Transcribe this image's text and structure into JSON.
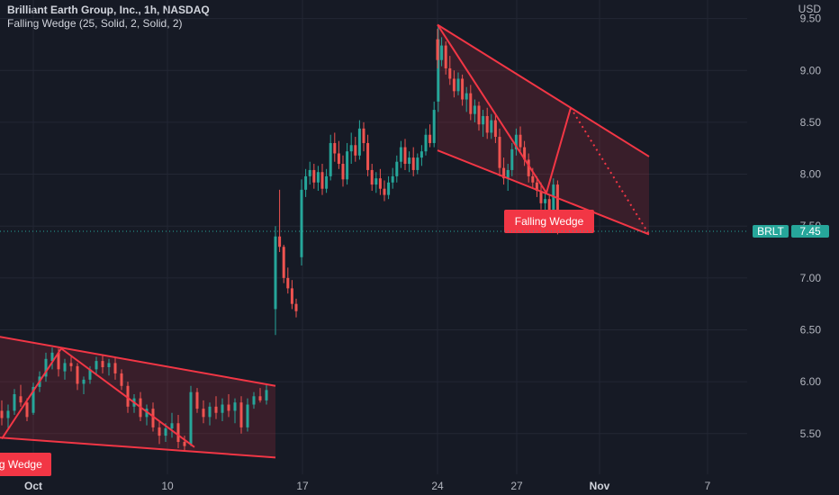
{
  "header": {
    "title": "Brilliant Earth Group, Inc., 1h, NASDAQ",
    "indicator": "Falling Wedge (25, Solid, 2, Solid, 2)"
  },
  "chart_data": {
    "type": "candlestick",
    "currency": "USD",
    "ticker": "BRLT",
    "last_price": "7.45",
    "ylim": [
      5.15,
      9.6
    ],
    "y_ticks": [
      "9.50",
      "9.00",
      "8.50",
      "8.00",
      "7.50",
      "7.00",
      "6.50",
      "6.00",
      "5.50"
    ],
    "x_ticks": [
      "Oct",
      "10",
      "17",
      "24",
      "27",
      "Nov",
      "7"
    ],
    "colors": {
      "up": "#26a69a",
      "down": "#ef5350",
      "wedge": "#f23645",
      "background": "#161a25",
      "grid": "#232734"
    },
    "patterns": [
      {
        "label": "Falling Wedge",
        "upper": [
          [
            "Oct 1",
            6.43
          ],
          [
            "Oct 16",
            5.96
          ]
        ],
        "lower": [
          [
            "Oct 1",
            5.46
          ],
          [
            "Oct 16",
            5.27
          ]
        ],
        "zigzag": [
          [
            "Oct 1",
            5.45
          ],
          [
            "Oct 3",
            6.32
          ],
          [
            "Oct 12",
            5.37
          ]
        ]
      },
      {
        "label": "Falling Wedge",
        "upper": [
          [
            "Oct 24",
            9.44
          ],
          [
            "Nov 3",
            8.17
          ]
        ],
        "lower": [
          [
            "Oct 24",
            8.23
          ],
          [
            "Nov 3",
            7.42
          ]
        ],
        "zigzag": [
          [
            "Oct 24",
            9.44
          ],
          [
            "Oct 28",
            7.82
          ],
          [
            "Oct 30",
            8.64
          ],
          [
            "Nov 3",
            7.42
          ]
        ]
      }
    ],
    "candles": [
      [
        5.72,
        5.82,
        5.58,
        5.65
      ],
      [
        5.65,
        5.78,
        5.55,
        5.72
      ],
      [
        5.72,
        5.93,
        5.68,
        5.88
      ],
      [
        5.86,
        5.97,
        5.76,
        5.8
      ],
      [
        5.8,
        5.84,
        5.62,
        5.66
      ],
      [
        5.7,
        5.99,
        5.68,
        5.95
      ],
      [
        5.95,
        6.1,
        5.9,
        6.05
      ],
      [
        6.05,
        6.28,
        6.0,
        6.22
      ],
      [
        6.2,
        6.33,
        6.12,
        6.28
      ],
      [
        6.28,
        6.32,
        6.05,
        6.12
      ],
      [
        6.1,
        6.22,
        6.02,
        6.18
      ],
      [
        6.18,
        6.24,
        6.1,
        6.15
      ],
      [
        6.15,
        6.18,
        5.92,
        5.98
      ],
      [
        5.98,
        6.05,
        5.88,
        6.02
      ],
      [
        6.02,
        6.15,
        5.98,
        6.12
      ],
      [
        6.12,
        6.24,
        6.06,
        6.2
      ],
      [
        6.2,
        6.26,
        6.08,
        6.14
      ],
      [
        6.14,
        6.22,
        6.06,
        6.18
      ],
      [
        6.18,
        6.24,
        6.02,
        6.08
      ],
      [
        6.08,
        6.12,
        5.92,
        5.96
      ],
      [
        5.96,
        6.0,
        5.7,
        5.76
      ],
      [
        5.76,
        5.88,
        5.7,
        5.84
      ],
      [
        5.84,
        5.9,
        5.62,
        5.66
      ],
      [
        5.66,
        5.78,
        5.58,
        5.74
      ],
      [
        5.74,
        5.8,
        5.52,
        5.56
      ],
      [
        5.56,
        5.62,
        5.4,
        5.48
      ],
      [
        5.48,
        5.6,
        5.42,
        5.55
      ],
      [
        5.55,
        5.7,
        5.46,
        5.6
      ],
      [
        5.6,
        5.68,
        5.36,
        5.42
      ],
      [
        5.42,
        5.48,
        5.34,
        5.38
      ],
      [
        5.4,
        5.96,
        5.38,
        5.9
      ],
      [
        5.9,
        5.94,
        5.7,
        5.74
      ],
      [
        5.74,
        5.82,
        5.6,
        5.66
      ],
      [
        5.66,
        5.8,
        5.58,
        5.76
      ],
      [
        5.76,
        5.86,
        5.64,
        5.7
      ],
      [
        5.7,
        5.84,
        5.62,
        5.78
      ],
      [
        5.78,
        5.88,
        5.66,
        5.72
      ],
      [
        5.72,
        5.84,
        5.6,
        5.8
      ],
      [
        5.8,
        5.86,
        5.5,
        5.56
      ],
      [
        5.56,
        5.84,
        5.52,
        5.78
      ],
      [
        5.78,
        5.9,
        5.74,
        5.86
      ],
      [
        5.86,
        5.94,
        5.8,
        5.82
      ],
      [
        5.82,
        5.98,
        5.78,
        5.92
      ],
      [
        6.7,
        7.5,
        6.45,
        7.4
      ],
      [
        7.4,
        7.85,
        7.25,
        7.3
      ],
      [
        7.3,
        7.32,
        6.95,
        7.0
      ],
      [
        7.0,
        7.1,
        6.85,
        6.9
      ],
      [
        6.9,
        6.98,
        6.7,
        6.75
      ],
      [
        6.75,
        6.8,
        6.62,
        6.68
      ],
      [
        7.2,
        7.95,
        7.12,
        7.85
      ],
      [
        7.85,
        8.05,
        7.78,
        7.98
      ],
      [
        7.98,
        8.12,
        7.9,
        8.04
      ],
      [
        8.04,
        8.1,
        7.86,
        7.92
      ],
      [
        7.92,
        8.08,
        7.84,
        8.02
      ],
      [
        8.02,
        8.1,
        7.8,
        7.86
      ],
      [
        7.86,
        8.05,
        7.82,
        7.98
      ],
      [
        7.98,
        8.38,
        7.94,
        8.3
      ],
      [
        8.3,
        8.4,
        8.12,
        8.2
      ],
      [
        8.2,
        8.32,
        8.05,
        8.1
      ],
      [
        8.1,
        8.18,
        7.88,
        7.95
      ],
      [
        7.95,
        8.3,
        7.9,
        8.22
      ],
      [
        8.22,
        8.4,
        8.1,
        8.28
      ],
      [
        8.28,
        8.36,
        8.12,
        8.18
      ],
      [
        8.18,
        8.52,
        8.14,
        8.44
      ],
      [
        8.44,
        8.5,
        8.22,
        8.3
      ],
      [
        8.3,
        8.38,
        7.98,
        8.04
      ],
      [
        8.04,
        8.1,
        7.84,
        7.9
      ],
      [
        7.9,
        8.02,
        7.82,
        7.96
      ],
      [
        7.96,
        8.05,
        7.8,
        7.86
      ],
      [
        7.86,
        7.94,
        7.74,
        7.8
      ],
      [
        7.8,
        7.98,
        7.76,
        7.92
      ],
      [
        7.92,
        8.06,
        7.86,
        7.98
      ],
      [
        7.98,
        8.18,
        7.92,
        8.12
      ],
      [
        8.12,
        8.32,
        8.06,
        8.26
      ],
      [
        8.26,
        8.34,
        8.04,
        8.1
      ],
      [
        8.1,
        8.22,
        8.02,
        8.16
      ],
      [
        8.16,
        8.26,
        7.98,
        8.04
      ],
      [
        8.04,
        8.2,
        8.0,
        8.16
      ],
      [
        8.16,
        8.28,
        8.08,
        8.22
      ],
      [
        8.22,
        8.44,
        8.18,
        8.38
      ],
      [
        8.38,
        8.48,
        8.26,
        8.3
      ],
      [
        8.3,
        8.7,
        8.26,
        8.62
      ],
      [
        8.7,
        9.44,
        8.6,
        9.3
      ],
      [
        9.3,
        9.4,
        9.02,
        9.1
      ],
      [
        9.1,
        9.32,
        9.04,
        9.24
      ],
      [
        9.24,
        9.28,
        8.96,
        9.02
      ],
      [
        9.02,
        9.14,
        8.86,
        8.92
      ],
      [
        8.92,
        9.0,
        8.74,
        8.8
      ],
      [
        8.8,
        8.98,
        8.76,
        8.92
      ],
      [
        8.92,
        8.96,
        8.66,
        8.72
      ],
      [
        8.72,
        8.84,
        8.6,
        8.78
      ],
      [
        8.78,
        8.86,
        8.52,
        8.58
      ],
      [
        8.58,
        8.72,
        8.5,
        8.66
      ],
      [
        8.66,
        8.7,
        8.42,
        8.48
      ],
      [
        8.48,
        8.62,
        8.36,
        8.56
      ],
      [
        8.56,
        8.64,
        8.34,
        8.4
      ],
      [
        8.4,
        8.58,
        8.34,
        8.52
      ],
      [
        8.52,
        8.58,
        8.3,
        8.36
      ],
      [
        8.36,
        8.44,
        7.98,
        8.06
      ],
      [
        8.06,
        8.16,
        7.9,
        7.96
      ],
      [
        7.96,
        8.1,
        7.84,
        8.04
      ],
      [
        8.04,
        8.3,
        7.98,
        8.24
      ],
      [
        8.24,
        8.44,
        8.18,
        8.38
      ],
      [
        8.38,
        8.46,
        8.2,
        8.26
      ],
      [
        8.26,
        8.32,
        8.08,
        8.14
      ],
      [
        8.14,
        8.2,
        7.92,
        7.98
      ],
      [
        7.98,
        8.06,
        7.86,
        7.92
      ],
      [
        7.92,
        7.98,
        7.78,
        7.84
      ],
      [
        7.84,
        7.92,
        7.66,
        7.72
      ],
      [
        7.72,
        7.82,
        7.62,
        7.76
      ],
      [
        7.76,
        7.8,
        7.58,
        7.62
      ],
      [
        7.62,
        7.96,
        7.54,
        7.9
      ],
      [
        7.9,
        7.94,
        7.42,
        7.45
      ]
    ]
  }
}
